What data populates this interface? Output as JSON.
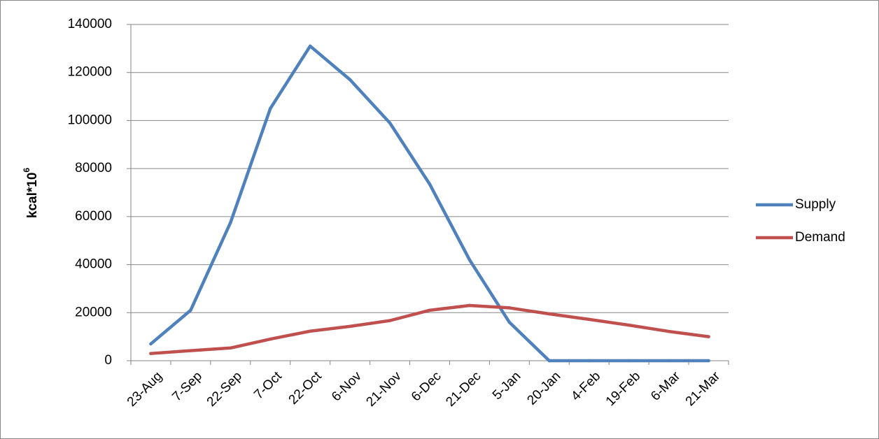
{
  "chart_data": {
    "type": "line",
    "title": "",
    "xlabel": "",
    "ylabel": "kcal*10",
    "ylabel_superscript": "6",
    "categories": [
      "23-Aug",
      "7-Sep",
      "22-Sep",
      "7-Oct",
      "22-Oct",
      "6-Nov",
      "21-Nov",
      "6-Dec",
      "21-Dec",
      "5-Jan",
      "20-Jan",
      "4-Feb",
      "19-Feb",
      "6-Mar",
      "21-Mar"
    ],
    "ylim": [
      0,
      140000
    ],
    "yticks": [
      0,
      20000,
      40000,
      60000,
      80000,
      100000,
      120000,
      140000
    ],
    "grid": "horizontal",
    "legend_position": "right",
    "series": [
      {
        "name": "Supply",
        "color": "#4F81BD",
        "values": [
          7000,
          21000,
          57500,
          105000,
          131000,
          117000,
          99000,
          73500,
          42000,
          16000,
          0,
          0,
          0,
          0,
          0
        ]
      },
      {
        "name": "Demand",
        "color": "#C0504D",
        "values": [
          3000,
          4200,
          5300,
          9000,
          12300,
          14300,
          16700,
          21000,
          23000,
          22000,
          19500,
          17200,
          14800,
          12200,
          10000
        ]
      }
    ]
  }
}
